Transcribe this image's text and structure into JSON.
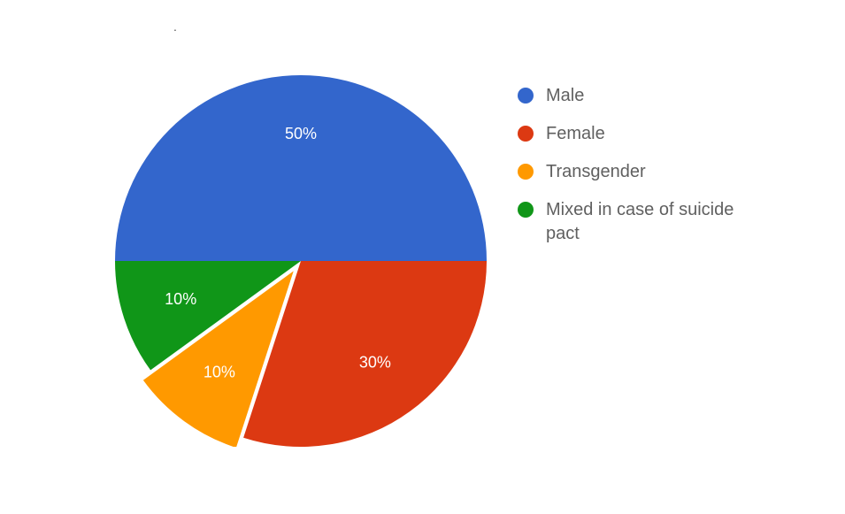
{
  "chart": {
    "type": "pie",
    "background_color": "#ffffff",
    "radius": 210,
    "pull_out_index": 2,
    "pull_out_distance": 14,
    "start_angle_deg": 180,
    "label_fontsize": 18,
    "label_color": "#ffffff",
    "label_radius_factor": 0.68,
    "slices": [
      {
        "label": "Male",
        "value": 50,
        "color": "#3366cc",
        "legend": "Male"
      },
      {
        "label": "Female",
        "value": 30,
        "color": "#dc3912",
        "legend": "Female"
      },
      {
        "label": "Transgender",
        "value": 10,
        "color": "#ff9900",
        "legend": "Transgender"
      },
      {
        "label": "Mixed",
        "value": 10,
        "color": "#109618",
        "legend": "Mixed in case of suicide pact"
      }
    ]
  },
  "legend": {
    "fontsize": 20,
    "text_color": "#606060",
    "swatch_shape": "circle",
    "swatch_size": 18
  },
  "decoration": {
    "top_dot": "."
  }
}
